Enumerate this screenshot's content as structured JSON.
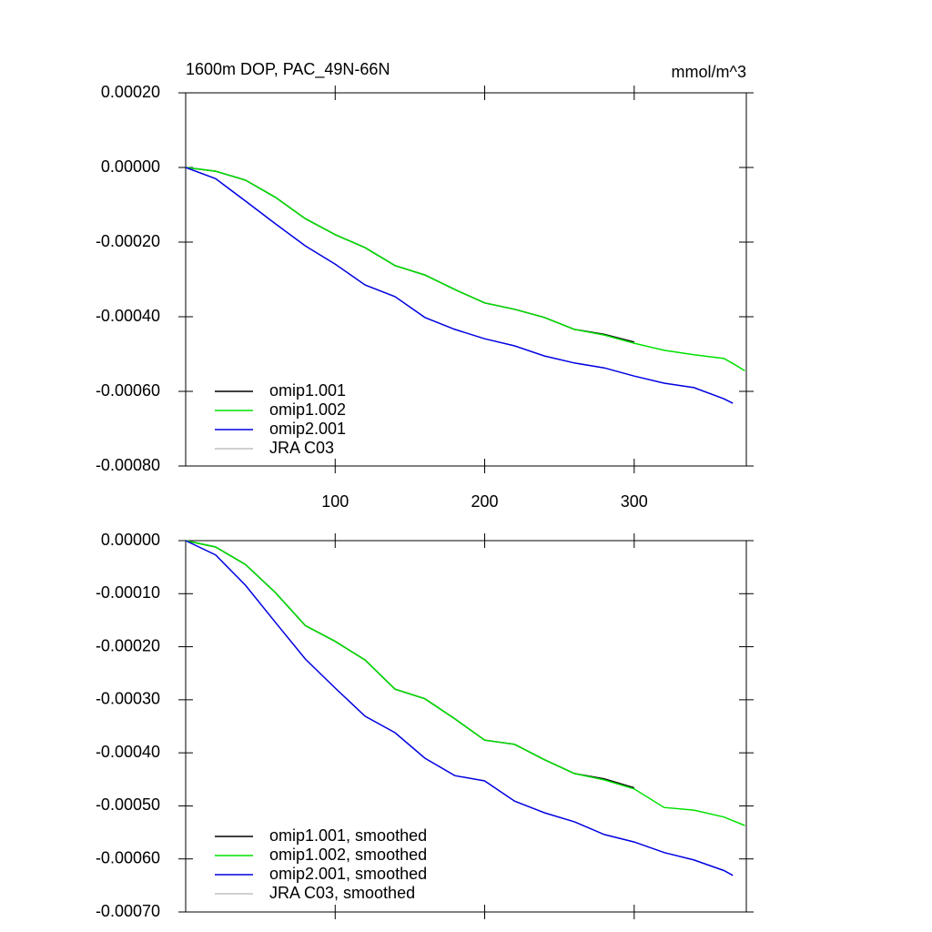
{
  "chart_data": [
    {
      "type": "line",
      "title": "1600m DOP, PAC_49N-66N",
      "units": "mmol/m^3",
      "x": [
        0,
        20,
        40,
        60,
        80,
        100,
        120,
        140,
        160,
        180,
        200,
        220,
        240,
        260,
        280,
        300,
        320,
        340,
        360,
        366,
        374
      ],
      "xlim": [
        0,
        375
      ],
      "xticks": [
        100,
        200,
        300
      ],
      "ylim": [
        -0.0008,
        0.0002
      ],
      "yticks": [
        {
          "value": -0.0008,
          "label": "-0.00080"
        },
        {
          "value": -0.0006,
          "label": "-0.00060"
        },
        {
          "value": -0.0004,
          "label": "-0.00040"
        },
        {
          "value": -0.0002,
          "label": "-0.00020"
        },
        {
          "value": 0,
          "label": "0.00000"
        },
        {
          "value": 0.0002,
          "label": "0.00020"
        }
      ],
      "legend": "lower left",
      "series": [
        {
          "name": "omip1.001",
          "color": "#000000",
          "values": [
            0,
            -1e-05,
            -3.4e-05,
            -8e-05,
            -0.000137,
            -0.00018,
            -0.000215,
            -0.000263,
            -0.000288,
            -0.000327,
            -0.000363,
            -0.00038,
            -0.000402,
            -0.000434,
            -0.000447,
            -0.000468,
            null,
            null,
            null,
            null,
            null
          ]
        },
        {
          "name": "omip1.002",
          "color": "#00e000",
          "values": [
            0,
            -1e-05,
            -3.4e-05,
            -8e-05,
            -0.000137,
            -0.00018,
            -0.000215,
            -0.000263,
            -0.000288,
            -0.000327,
            -0.000363,
            -0.00038,
            -0.000402,
            -0.000434,
            -0.000449,
            -0.000471,
            -0.00049,
            -0.000502,
            -0.000512,
            -0.000525,
            -0.000545
          ]
        },
        {
          "name": "omip2.001",
          "color": "#0000e0",
          "values": [
            0,
            -3e-05,
            -9e-05,
            -0.000151,
            -0.00021,
            -0.000259,
            -0.000315,
            -0.000346,
            -0.000402,
            -0.000434,
            -0.000459,
            -0.000478,
            -0.000505,
            -0.000524,
            -0.000537,
            -0.000559,
            -0.000578,
            -0.00059,
            -0.00062,
            -0.000632,
            null
          ]
        },
        {
          "name": "JRA C03",
          "color": "#c0c0c0",
          "values": [
            null,
            null,
            null,
            null,
            null,
            null,
            null,
            null,
            null,
            null,
            null,
            null,
            null,
            null,
            null,
            null,
            null,
            null,
            null,
            null,
            null
          ]
        }
      ]
    },
    {
      "type": "line",
      "x": [
        0,
        20,
        40,
        60,
        80,
        100,
        120,
        140,
        160,
        180,
        200,
        220,
        240,
        260,
        280,
        300,
        320,
        340,
        360,
        366,
        374
      ],
      "xlim": [
        0,
        375
      ],
      "xticks": [
        100,
        200,
        300
      ],
      "ylim": [
        -0.0007,
        0
      ],
      "yticks": [
        {
          "value": -0.0007,
          "label": "-0.00070"
        },
        {
          "value": -0.0006,
          "label": "-0.00060"
        },
        {
          "value": -0.0005,
          "label": "-0.00050"
        },
        {
          "value": -0.0004,
          "label": "-0.00040"
        },
        {
          "value": -0.0003,
          "label": "-0.00030"
        },
        {
          "value": -0.0002,
          "label": "-0.00020"
        },
        {
          "value": -0.0001,
          "label": "-0.00010"
        },
        {
          "value": 0,
          "label": "0.00000"
        }
      ],
      "legend": "lower left",
      "series": [
        {
          "name": "omip1.001, smoothed",
          "color": "#000000",
          "values": [
            0,
            -1.2e-05,
            -4.5e-05,
            -9.8e-05,
            -0.00016,
            -0.00019,
            -0.000225,
            -0.00028,
            -0.000298,
            -0.000336,
            -0.000376,
            -0.000384,
            -0.000413,
            -0.000439,
            -0.000449,
            -0.000466,
            null,
            null,
            null,
            null,
            null
          ]
        },
        {
          "name": "omip1.002, smoothed",
          "color": "#00e000",
          "values": [
            0,
            -1.2e-05,
            -4.5e-05,
            -9.8e-05,
            -0.00016,
            -0.00019,
            -0.000225,
            -0.00028,
            -0.000298,
            -0.000336,
            -0.000376,
            -0.000384,
            -0.000413,
            -0.000439,
            -0.000451,
            -0.000468,
            -0.000503,
            -0.000508,
            -0.000521,
            -0.000528,
            -0.000537
          ]
        },
        {
          "name": "omip2.001, smoothed",
          "color": "#0000e0",
          "values": [
            0,
            -2.7e-05,
            -8.4e-05,
            -0.000154,
            -0.000223,
            -0.000278,
            -0.000331,
            -0.000362,
            -0.00041,
            -0.000443,
            -0.000453,
            -0.000491,
            -0.000513,
            -0.00053,
            -0.000554,
            -0.000568,
            -0.000588,
            -0.000602,
            -0.000622,
            -0.000631,
            null
          ]
        },
        {
          "name": "JRA C03, smoothed",
          "color": "#c0c0c0",
          "values": [
            null,
            null,
            null,
            null,
            null,
            null,
            null,
            null,
            null,
            null,
            null,
            null,
            null,
            null,
            null,
            null,
            null,
            null,
            null,
            null,
            null
          ]
        }
      ]
    }
  ]
}
